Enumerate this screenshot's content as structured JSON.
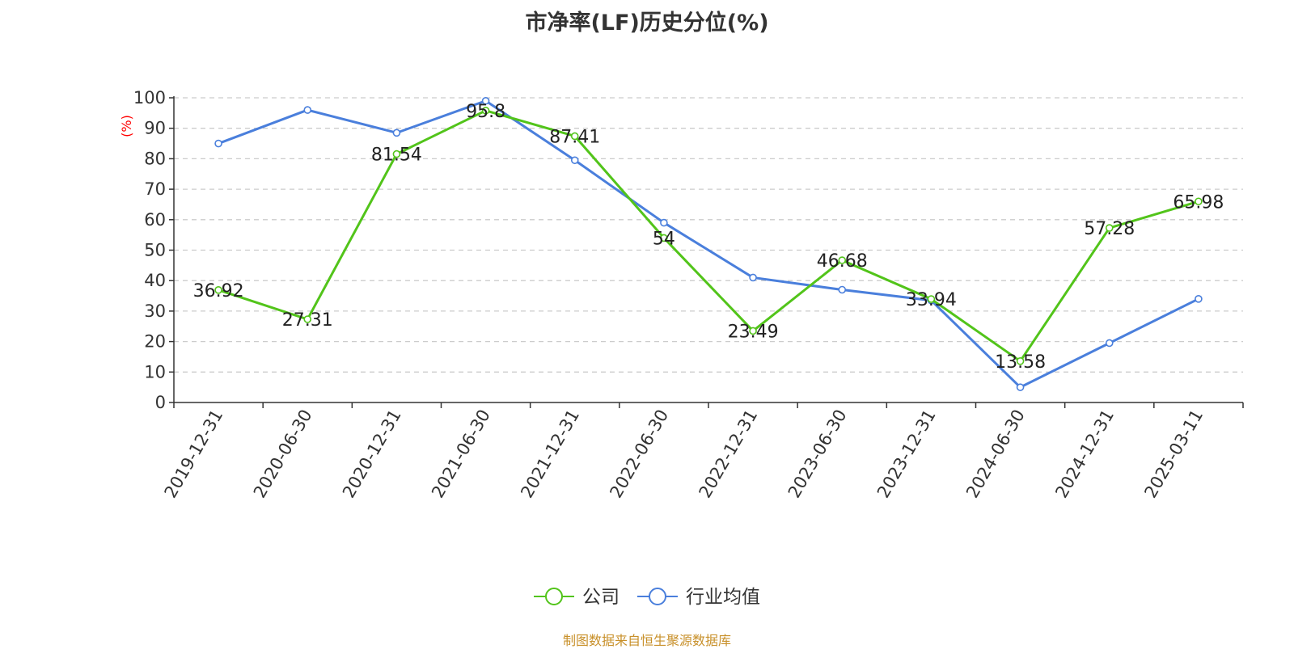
{
  "chart_data": {
    "type": "line",
    "title": "市净率(LF)历史分位(%)",
    "ylabel": "(%)",
    "ylim": [
      0,
      100
    ],
    "y_ticks": [
      0,
      10,
      20,
      30,
      40,
      50,
      60,
      70,
      80,
      90,
      100
    ],
    "grid": true,
    "legend_position": "bottom",
    "categories": [
      "2019-12-31",
      "2020-06-30",
      "2020-12-31",
      "2021-06-30",
      "2021-12-31",
      "2022-06-30",
      "2022-12-31",
      "2023-06-30",
      "2023-12-31",
      "2024-06-30",
      "2024-12-31",
      "2025-03-11"
    ],
    "series": [
      {
        "name": "公司",
        "color": "#52c41a",
        "show_labels": true,
        "values": [
          36.92,
          27.31,
          81.54,
          95.8,
          87.41,
          54,
          23.49,
          46.68,
          33.94,
          13.58,
          57.28,
          65.98
        ]
      },
      {
        "name": "行业均值",
        "color": "#4a7fdc",
        "show_labels": false,
        "values": [
          85,
          96,
          88.5,
          99,
          79.5,
          59,
          41,
          37,
          33.5,
          5,
          19.5,
          34
        ]
      }
    ]
  },
  "source": "制图数据来自恒生聚源数据库"
}
